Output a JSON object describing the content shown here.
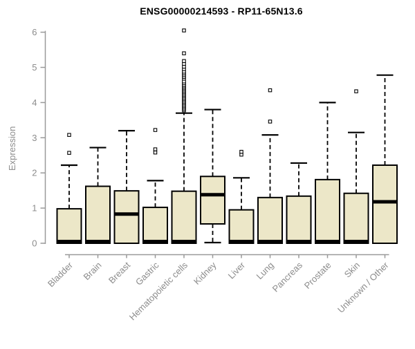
{
  "title": "ENSG00000214593 - RP11-65N13.6",
  "colors": {
    "box_fill": "#ECE7C8",
    "box_border": "#000000",
    "median": "#000000",
    "axis_line": "#999999",
    "axis_text": "#8c8c8c",
    "title_text": "#000000",
    "background": "#ffffff"
  },
  "chart_data": {
    "type": "boxplot",
    "title": "ENSG00000214593 - RP11-65N13.6",
    "xlabel": "",
    "ylabel": "Expression",
    "ylim": [
      0,
      6
    ],
    "yticks": [
      0,
      1,
      2,
      3,
      4,
      5,
      6
    ],
    "grid": false,
    "legend": "none",
    "categories": [
      "Bladder",
      "Brain",
      "Breast",
      "Gastric",
      "Hematopoietic cells",
      "Kidney",
      "Liver",
      "Lung",
      "Pancreas",
      "Prostate",
      "Skin",
      "Unknown / Other"
    ],
    "series": [
      {
        "name": "Bladder",
        "q1": 0,
        "median": 0.05,
        "q3": 0.98,
        "whisker_low": 0,
        "whisker_high": 2.22,
        "outliers": [
          2.57,
          3.08
        ]
      },
      {
        "name": "Brain",
        "q1": 0,
        "median": 0.05,
        "q3": 1.62,
        "whisker_low": 0,
        "whisker_high": 2.72,
        "outliers": []
      },
      {
        "name": "Breast",
        "q1": 0,
        "median": 0.83,
        "q3": 1.49,
        "whisker_low": 0,
        "whisker_high": 3.2,
        "outliers": []
      },
      {
        "name": "Gastric",
        "q1": 0,
        "median": 0.05,
        "q3": 1.02,
        "whisker_low": 0,
        "whisker_high": 1.78,
        "outliers": [
          2.58,
          2.67,
          3.22
        ]
      },
      {
        "name": "Hematopoietic cells",
        "q1": 0,
        "median": 0.05,
        "q3": 1.48,
        "whisker_low": 0,
        "whisker_high": 3.7,
        "outliers": [
          3.78,
          3.82,
          3.86,
          3.9,
          3.94,
          3.98,
          4.02,
          4.06,
          4.1,
          4.14,
          4.18,
          4.22,
          4.26,
          4.3,
          4.34,
          4.38,
          4.42,
          4.46,
          4.5,
          4.55,
          4.6,
          4.68,
          4.73,
          4.78,
          4.83,
          4.88,
          4.95,
          5.02,
          5.1,
          5.18,
          5.4,
          6.05
        ]
      },
      {
        "name": "Kidney",
        "q1": 0.55,
        "median": 1.38,
        "q3": 1.9,
        "whisker_low": 0.02,
        "whisker_high": 3.8,
        "outliers": []
      },
      {
        "name": "Liver",
        "q1": 0,
        "median": 0.05,
        "q3": 0.95,
        "whisker_low": 0,
        "whisker_high": 1.86,
        "outliers": [
          2.52,
          2.6
        ]
      },
      {
        "name": "Lung",
        "q1": 0,
        "median": 0.05,
        "q3": 1.3,
        "whisker_low": 0,
        "whisker_high": 3.08,
        "outliers": [
          3.46,
          4.35
        ]
      },
      {
        "name": "Pancreas",
        "q1": 0,
        "median": 0.05,
        "q3": 1.34,
        "whisker_low": 0,
        "whisker_high": 2.28,
        "outliers": []
      },
      {
        "name": "Prostate",
        "q1": 0,
        "median": 0.05,
        "q3": 1.81,
        "whisker_low": 0,
        "whisker_high": 4.0,
        "outliers": []
      },
      {
        "name": "Skin",
        "q1": 0,
        "median": 0.05,
        "q3": 1.42,
        "whisker_low": 0,
        "whisker_high": 3.15,
        "outliers": [
          4.32
        ]
      },
      {
        "name": "Unknown / Other",
        "q1": 0,
        "median": 1.18,
        "q3": 2.22,
        "whisker_low": 0,
        "whisker_high": 4.78,
        "outliers": []
      }
    ]
  }
}
